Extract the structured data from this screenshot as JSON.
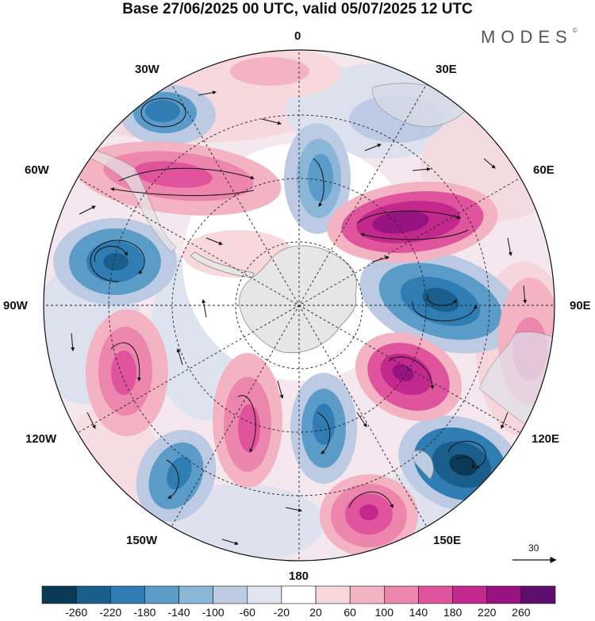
{
  "title": "Base 27/06/2025 00 UTC, valid 05/07/2025 12 UTC",
  "brand": "MODES",
  "brand_mark": "©",
  "longitude_labels": {
    "lon_0": "0",
    "lon_30e": "30E",
    "lon_60e": "60E",
    "lon_90e": "90E",
    "lon_120e": "120E",
    "lon_150e": "150E",
    "lon_180": "180",
    "lon_150w": "150W",
    "lon_120w": "120W",
    "lon_90w": "90W",
    "lon_60w": "60W",
    "lon_30w": "30W"
  },
  "reference_vector": "30",
  "colorbar": {
    "ticks": [
      "-260",
      "-220",
      "-180",
      "-140",
      "-100",
      "-60",
      "-20",
      "20",
      "60",
      "100",
      "140",
      "180",
      "220",
      "260"
    ],
    "colors": [
      "#0b3a57",
      "#1a5f8c",
      "#2f7db3",
      "#5a9bc8",
      "#8cb6d8",
      "#bccbe3",
      "#e2e4f0",
      "#ffffff",
      "#f9d8dc",
      "#f3b3c2",
      "#ec86ad",
      "#df549d",
      "#c3288c",
      "#97137f",
      "#5e0d6d"
    ]
  },
  "map_regions": {
    "antarctica": "antarctica-landmass",
    "south_america": "south-america-tip",
    "africa": "south-africa",
    "australia": "australia",
    "new_zealand": "new-zealand"
  }
}
